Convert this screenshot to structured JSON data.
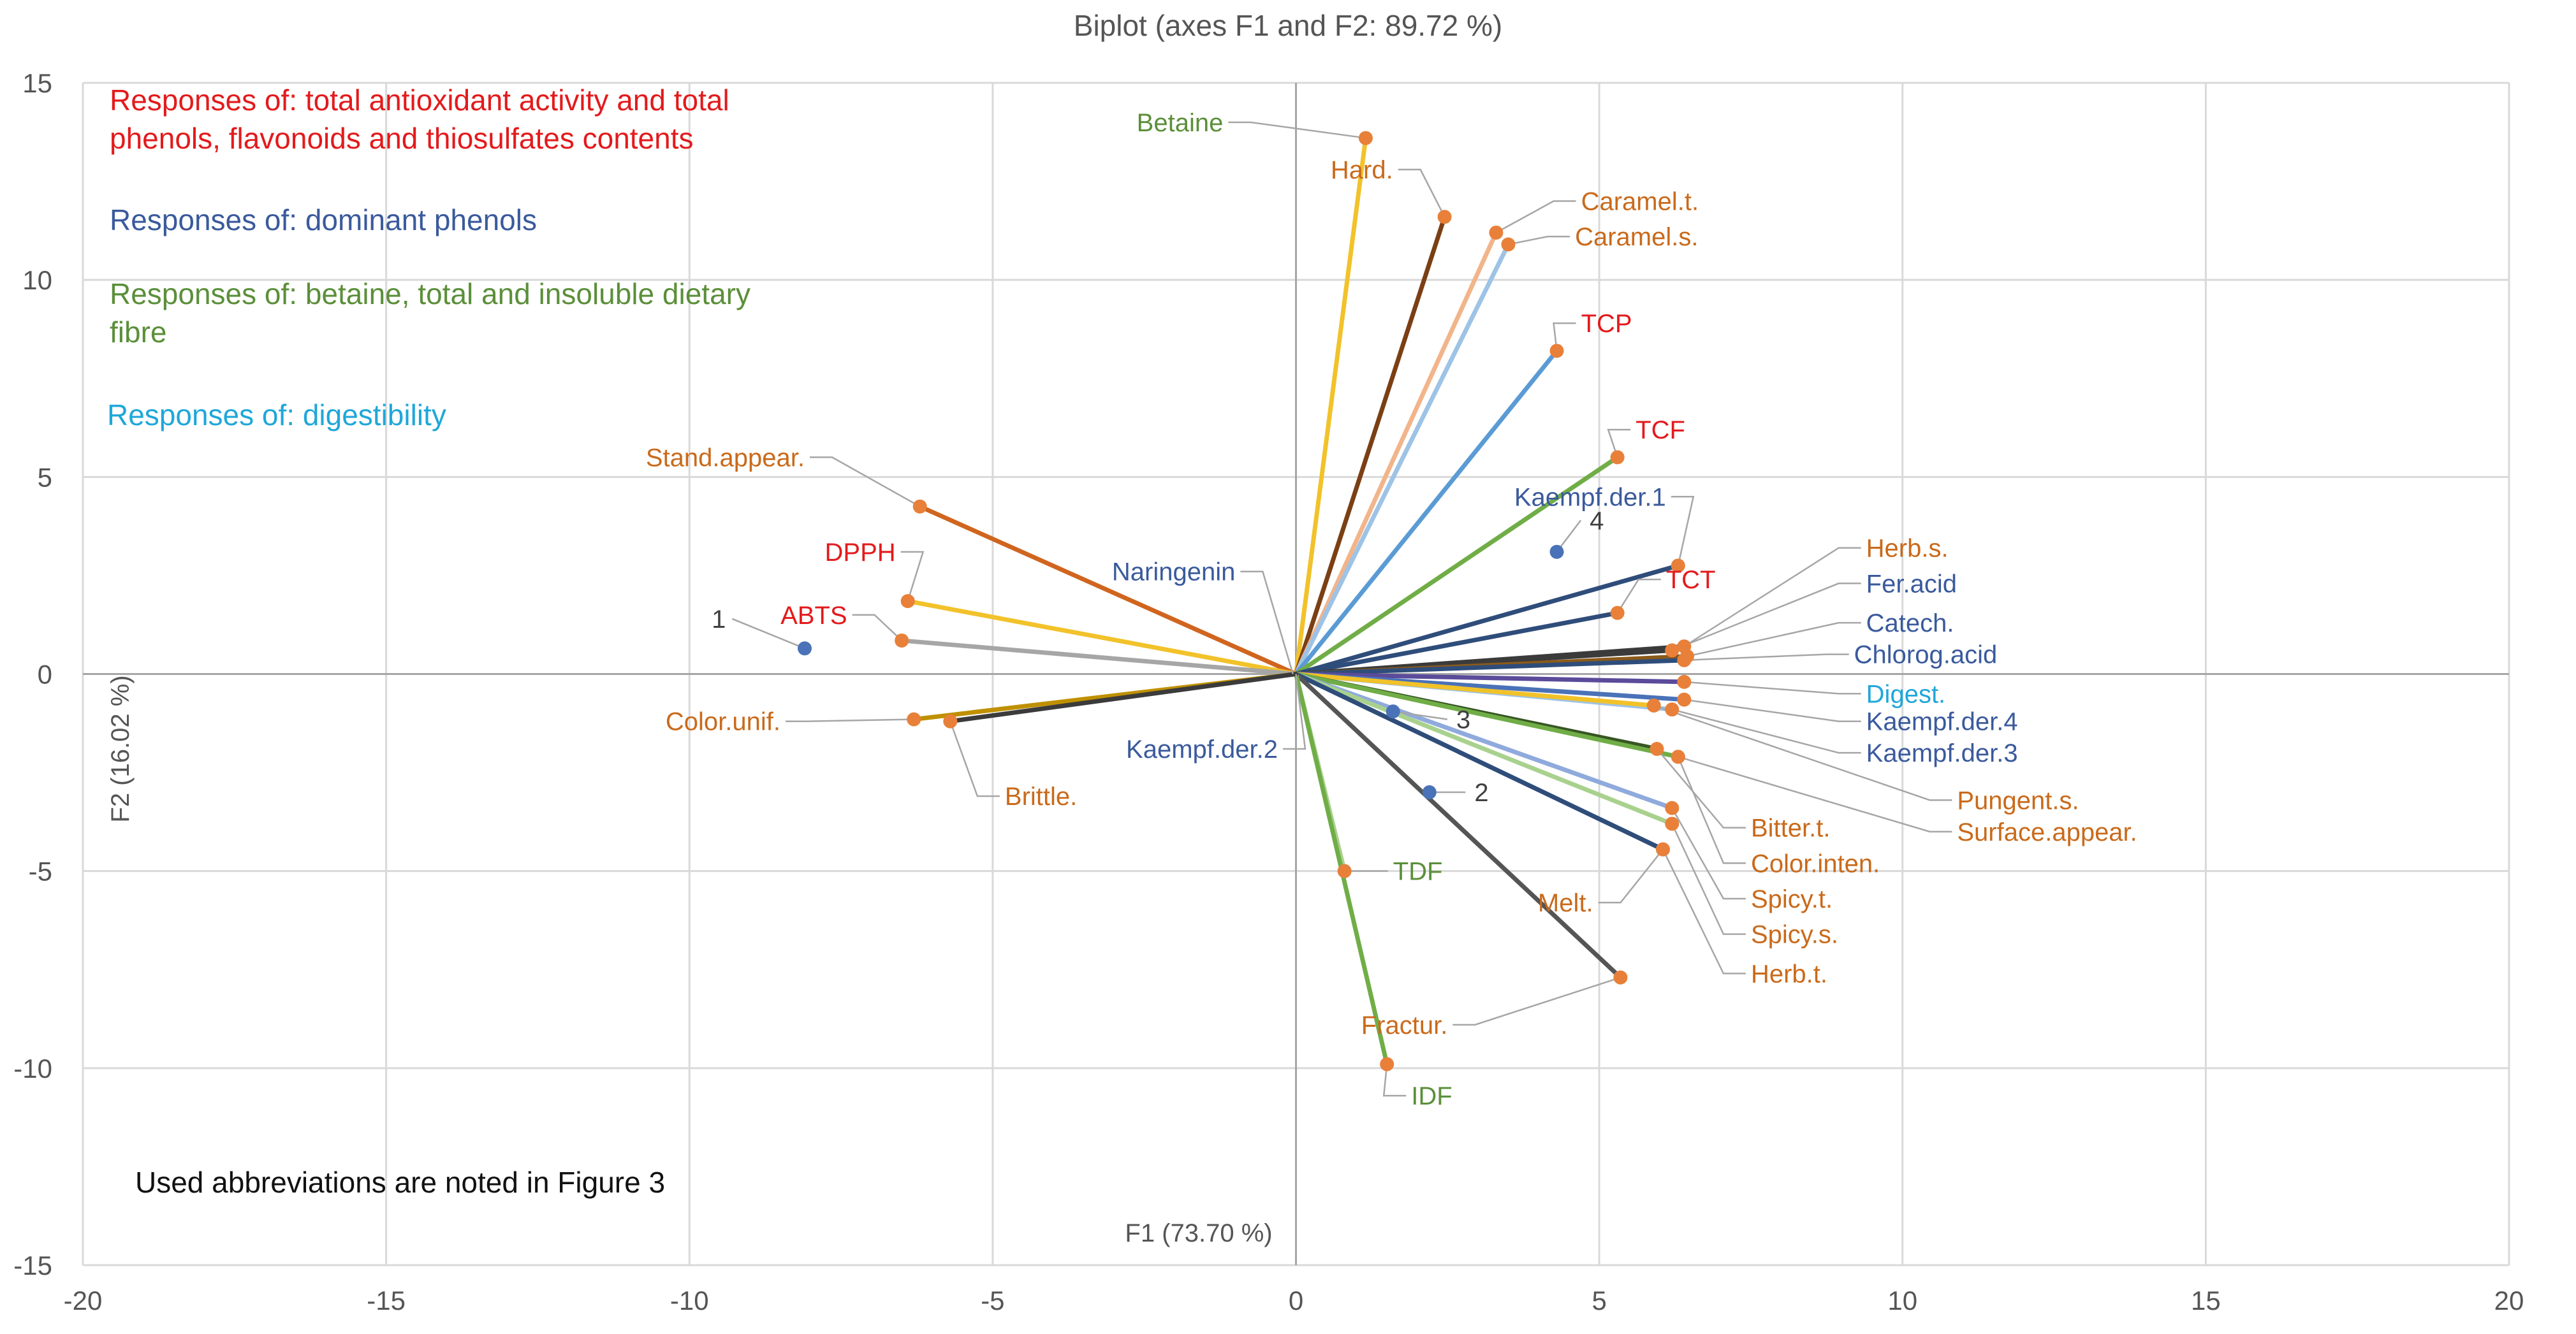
{
  "chart_data": {
    "type": "scatter",
    "title": "Biplot (axes F1 and F2: 89.72 %)",
    "xlabel": "F1 (73.70 %)",
    "ylabel": "F2 (16.02 %)",
    "xlim": [
      -20,
      20
    ],
    "ylim": [
      -15,
      15
    ],
    "xticks": [
      -20,
      -15,
      -10,
      -5,
      0,
      5,
      10,
      15,
      20
    ],
    "yticks": [
      -15,
      -10,
      -5,
      0,
      5,
      10,
      15
    ],
    "grid": true,
    "colors": {
      "red": "#e31a1c",
      "blue": "#3a5a9c",
      "green": "#5b8f3a",
      "cyan": "#1fa7d9",
      "orange": "#c96a1b",
      "gray": "#555555",
      "dot_orange": "#e8803a",
      "dot_blue": "#4a72b8"
    },
    "legend_notes": [
      {
        "text": "Responses of: total antioxidant activity and total\nphenols, flavonoids and thiosulfates contents",
        "color": "#e31a1c"
      },
      {
        "text": "Responses of: dominant phenols",
        "color": "#3a5a9c"
      },
      {
        "text": "Responses of: betaine, total and insoluble dietary\nfibre",
        "color": "#5b8f3a"
      },
      {
        "text": "Responses of: digestibility",
        "color": "#1fa7d9"
      }
    ],
    "footnote": "Used abbreviations are noted in Figure 3",
    "observations": [
      {
        "name": "1",
        "x": -8.1,
        "y": 0.65,
        "lx": -9.4,
        "ly": 1.4
      },
      {
        "name": "2",
        "x": 2.2,
        "y": -3.0,
        "lx": 2.9,
        "ly": -3.0
      },
      {
        "name": "3",
        "x": 1.6,
        "y": -0.95,
        "lx": 2.6,
        "ly": -1.15
      },
      {
        "name": "4",
        "x": 4.3,
        "y": 3.1,
        "lx": 4.8,
        "ly": 3.9
      }
    ],
    "variables": [
      {
        "name": "Betaine",
        "x": 1.15,
        "y": 13.6,
        "line": "#f2c22a",
        "label": "#5b8f3a",
        "lx": -1.2,
        "ly": 14.0
      },
      {
        "name": "Hard.",
        "x": 2.45,
        "y": 11.6,
        "line": "#7b3f14",
        "label": "#c96a1b",
        "lx": 1.6,
        "ly": 12.8
      },
      {
        "name": "Caramel.t.",
        "x": 3.3,
        "y": 11.2,
        "line": "#f2b48a",
        "label": "#c96a1b",
        "lx": 4.7,
        "ly": 12.0
      },
      {
        "name": "Caramel.s.",
        "x": 3.5,
        "y": 10.9,
        "line": "#9dc3e6",
        "label": "#c96a1b",
        "lx": 4.6,
        "ly": 11.1
      },
      {
        "name": "TCP",
        "x": 4.3,
        "y": 8.2,
        "line": "#5b9bd5",
        "label": "#e31a1c",
        "lx": 4.7,
        "ly": 8.9
      },
      {
        "name": "TCF",
        "x": 5.3,
        "y": 5.5,
        "line": "#70ad47",
        "label": "#e31a1c",
        "lx": 5.6,
        "ly": 6.2
      },
      {
        "name": "Kaempf.der.1",
        "x": 6.3,
        "y": 2.75,
        "line": "#2f4d7a",
        "label": "#3a5a9c",
        "lx": 6.1,
        "ly": 4.5
      },
      {
        "name": "TCT",
        "x": 5.3,
        "y": 1.55,
        "line": "#2f4d7a",
        "label": "#e31a1c",
        "lx": 6.1,
        "ly": 2.4
      },
      {
        "name": "Herb.s.",
        "x": 6.4,
        "y": 0.7,
        "line": "#3b3b3b",
        "label": "#c96a1b",
        "lx": 9.4,
        "ly": 3.2
      },
      {
        "name": "Fer.acid",
        "x": 6.2,
        "y": 0.6,
        "line": "#3b3b3b",
        "label": "#3a5a9c",
        "lx": 9.4,
        "ly": 2.3
      },
      {
        "name": "Catech.",
        "x": 6.45,
        "y": 0.45,
        "line": "#8b5a1a",
        "label": "#3a5a9c",
        "lx": 9.4,
        "ly": 1.3
      },
      {
        "name": "Chlorog.acid",
        "x": 6.4,
        "y": 0.35,
        "line": "#2f4d7a",
        "label": "#3a5a9c",
        "lx": 9.2,
        "ly": 0.5
      },
      {
        "name": "Digest.",
        "x": 6.4,
        "y": -0.2,
        "line": "#5b4b9a",
        "label": "#1fa7d9",
        "lx": 9.4,
        "ly": -0.5
      },
      {
        "name": "Kaempf.der.4",
        "x": 6.4,
        "y": -0.65,
        "line": "#4a72b8",
        "label": "#3a5a9c",
        "lx": 9.4,
        "ly": -1.2
      },
      {
        "name": "Kaempf.der.3",
        "x": 6.2,
        "y": -0.9,
        "line": "#9dc3e6",
        "label": "#3a5a9c",
        "lx": 9.4,
        "ly": -2.0
      },
      {
        "name": "Pungent.s.",
        "x": 5.9,
        "y": -0.8,
        "line": "#f2c22a",
        "label": "#c96a1b",
        "lx": 10.9,
        "ly": -3.2
      },
      {
        "name": "Surface.appear.",
        "x": 6.3,
        "y": -2.1,
        "line": "#a9d18e",
        "label": "#c96a1b",
        "lx": 10.9,
        "ly": -4.0
      },
      {
        "name": "Bitter.t.",
        "x": 5.95,
        "y": -1.9,
        "line": "#375623",
        "label": "#c96a1b",
        "lx": 7.5,
        "ly": -3.9
      },
      {
        "name": "Color.inten.",
        "x": 6.3,
        "y": -2.1,
        "line": "#70ad47",
        "label": "#c96a1b",
        "lx": 7.5,
        "ly": -4.8
      },
      {
        "name": "Spicy.t.",
        "x": 6.2,
        "y": -3.4,
        "line": "#8faadc",
        "label": "#c96a1b",
        "lx": 7.5,
        "ly": -5.7
      },
      {
        "name": "Spicy.s.",
        "x": 6.2,
        "y": -3.8,
        "line": "#a9d18e",
        "label": "#c96a1b",
        "lx": 7.5,
        "ly": -6.6
      },
      {
        "name": "Herb.t.",
        "x": 6.05,
        "y": -4.45,
        "line": "#2f4d7a",
        "label": "#c96a1b",
        "lx": 7.5,
        "ly": -7.6
      },
      {
        "name": "Melt.",
        "x": 6.05,
        "y": -4.45,
        "line": "#2f4d7a",
        "label": "#c96a1b",
        "lx": 4.9,
        "ly": -5.8
      },
      {
        "name": "Fractur.",
        "x": 5.35,
        "y": -7.7,
        "line": "#555555",
        "label": "#c96a1b",
        "lx": 2.5,
        "ly": -8.9
      },
      {
        "name": "TDF",
        "x": 0.8,
        "y": -5.0,
        "line": "#a9d18e",
        "label": "#5b8f3a",
        "lx": 1.6,
        "ly": -5.0
      },
      {
        "name": "IDF",
        "x": 1.5,
        "y": -9.9,
        "line": "#70ad47",
        "label": "#5b8f3a",
        "lx": 1.9,
        "ly": -10.7
      },
      {
        "name": "Stand.appear.",
        "x": -6.2,
        "y": 4.25,
        "line": "#d0651f",
        "label": "#c96a1b",
        "lx": -8.1,
        "ly": 5.5
      },
      {
        "name": "DPPH",
        "x": -6.4,
        "y": 1.85,
        "line": "#f2c22a",
        "label": "#e31a1c",
        "lx": -6.6,
        "ly": 3.1
      },
      {
        "name": "ABTS",
        "x": -6.5,
        "y": 0.85,
        "line": "#a6a6a6",
        "label": "#e31a1c",
        "lx": -7.4,
        "ly": 1.5
      },
      {
        "name": "Color.unif.",
        "x": -6.3,
        "y": -1.15,
        "line": "#bf9000",
        "label": "#c96a1b",
        "lx": -8.5,
        "ly": -1.2
      },
      {
        "name": "Brittle.",
        "x": -5.7,
        "y": -1.2,
        "line": "#3b3b3b",
        "label": "#c96a1b",
        "lx": -4.8,
        "ly": -3.1
      },
      {
        "name": "Naringenin",
        "x": -0.05,
        "y": 0.0,
        "line": "#555555",
        "label": "#3a5a9c",
        "lx": -1.0,
        "ly": 2.6
      },
      {
        "name": "Kaempf.der.2",
        "x": 0.0,
        "y": 0.0,
        "line": "#555555",
        "label": "#3a5a9c",
        "lx": -0.3,
        "ly": -1.9
      }
    ]
  }
}
